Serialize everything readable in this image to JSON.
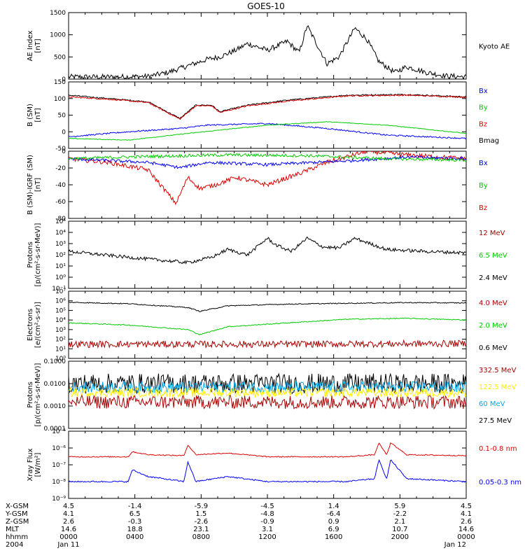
{
  "title": "GOES-10",
  "chart_data": [
    {
      "type": "line",
      "id": "ae",
      "ylabel": "AE Index\n[nT]",
      "ylim": [
        0,
        1500
      ],
      "yscale": "linear",
      "yticks": [
        "0",
        "500",
        "1000",
        "1500"
      ],
      "legend": [
        {
          "name": "Kyoto AE",
          "color": "#000000"
        }
      ],
      "series": [
        {
          "name": "Kyoto AE",
          "color": "#000000",
          "noise": 60,
          "t": [
            0,
            0.1,
            0.2,
            0.25,
            0.3,
            0.35,
            0.38,
            0.42,
            0.45,
            0.5,
            0.55,
            0.58,
            0.6,
            0.65,
            0.68,
            0.72,
            0.75,
            0.78,
            0.82,
            0.85,
            0.9,
            0.95,
            1.0
          ],
          "y": [
            50,
            50,
            60,
            150,
            300,
            450,
            500,
            650,
            800,
            650,
            850,
            600,
            1200,
            350,
            500,
            1150,
            900,
            400,
            150,
            280,
            150,
            70,
            50
          ]
        }
      ]
    },
    {
      "type": "line",
      "id": "bsm",
      "ylabel": "B (SM)\n[nT]",
      "ylim": [
        -50,
        150
      ],
      "yscale": "linear",
      "yticks": [
        "-50",
        "0",
        "50",
        "100",
        "150"
      ],
      "legend": [
        {
          "name": "Bx",
          "color": "#0000ff"
        },
        {
          "name": "By",
          "color": "#00cc00"
        },
        {
          "name": "Bz",
          "color": "#dd0000"
        },
        {
          "name": "Bmag",
          "color": "#000000"
        }
      ],
      "series": [
        {
          "name": "Bmag",
          "color": "#000000",
          "noise": 2,
          "t": [
            0,
            0.1,
            0.2,
            0.28,
            0.32,
            0.36,
            0.38,
            0.45,
            0.55,
            0.7,
            0.85,
            1.0
          ],
          "y": [
            110,
            100,
            90,
            40,
            80,
            80,
            60,
            80,
            95,
            110,
            112,
            105
          ]
        },
        {
          "name": "Bz",
          "color": "#dd0000",
          "noise": 2,
          "t": [
            0,
            0.1,
            0.2,
            0.28,
            0.32,
            0.36,
            0.38,
            0.45,
            0.55,
            0.7,
            0.85,
            1.0
          ],
          "y": [
            105,
            98,
            88,
            38,
            78,
            78,
            58,
            78,
            92,
            108,
            110,
            104
          ]
        },
        {
          "name": "Bx",
          "color": "#0000ff",
          "noise": 2,
          "t": [
            0,
            0.15,
            0.28,
            0.35,
            0.5,
            0.65,
            0.8,
            1.0
          ],
          "y": [
            -15,
            0,
            10,
            20,
            25,
            10,
            -10,
            -20
          ]
        },
        {
          "name": "By",
          "color": "#00cc00",
          "noise": 1,
          "t": [
            0,
            0.15,
            0.3,
            0.5,
            0.65,
            0.8,
            1.0
          ],
          "y": [
            -20,
            -25,
            -5,
            20,
            30,
            20,
            -5
          ]
        }
      ]
    },
    {
      "type": "line",
      "id": "bsmigrf",
      "ylabel": "B (SM)-IGRF (SM)\n[nT]",
      "ylim": [
        -80,
        10
      ],
      "yscale": "linear",
      "yticks": [
        "-80",
        "-60",
        "-40",
        "-20",
        "0"
      ],
      "legend": [
        {
          "name": "Bx",
          "color": "#0000ff"
        },
        {
          "name": "By",
          "color": "#00cc00"
        },
        {
          "name": "Bz",
          "color": "#dd0000"
        }
      ],
      "series": [
        {
          "name": "Bz",
          "color": "#dd0000",
          "noise": 3,
          "t": [
            0,
            0.1,
            0.2,
            0.27,
            0.3,
            0.33,
            0.37,
            0.42,
            0.5,
            0.58,
            0.65,
            0.75,
            0.85,
            1.0
          ],
          "y": [
            0,
            -5,
            -15,
            -60,
            -25,
            -40,
            -35,
            -25,
            -35,
            -20,
            -5,
            10,
            5,
            0
          ]
        },
        {
          "name": "Bx",
          "color": "#0000ff",
          "noise": 2,
          "t": [
            0,
            0.2,
            0.28,
            0.35,
            0.5,
            0.7,
            0.85,
            1.0
          ],
          "y": [
            0,
            -5,
            -12,
            -5,
            -8,
            -3,
            2,
            0
          ]
        },
        {
          "name": "By",
          "color": "#00cc00",
          "noise": 2,
          "t": [
            0,
            0.2,
            0.4,
            0.6,
            0.8,
            1.0
          ],
          "y": [
            0,
            3,
            5,
            4,
            0,
            -2
          ]
        }
      ]
    },
    {
      "type": "line",
      "id": "protons_low",
      "ylabel": "Protons\n[p/(cm²-s-sr-MeV)]",
      "ylim": [
        0.1,
        100000
      ],
      "yscale": "log",
      "yticks": [
        "10⁻¹",
        "10⁰",
        "10¹",
        "10²",
        "10³",
        "10⁴",
        "10⁵"
      ],
      "legend": [
        {
          "name": "12 MeV",
          "color": "#aa0000"
        },
        {
          "name": "6.5 MeV",
          "color": "#00cc00"
        },
        {
          "name": "2.4 MeV",
          "color": "#000000"
        }
      ],
      "series": [
        {
          "name": "2.4 MeV",
          "color": "#000000",
          "noise": 0.15,
          "t": [
            0,
            0.15,
            0.3,
            0.36,
            0.4,
            0.45,
            0.5,
            0.52,
            0.56,
            0.6,
            0.64,
            0.68,
            0.72,
            0.8,
            0.9,
            1.0
          ],
          "y": [
            200,
            60,
            20,
            60,
            300,
            100,
            3000,
            800,
            200,
            3000,
            500,
            400,
            3000,
            300,
            200,
            150
          ]
        }
      ]
    },
    {
      "type": "line",
      "id": "electrons",
      "ylabel": "Electrons\n[e/(cm²-s-sr)]",
      "ylim": [
        1,
        10000000
      ],
      "yscale": "log",
      "yticks": [
        "10⁰",
        "10¹",
        "10²",
        "10³",
        "10⁴",
        "10⁵",
        "10⁶",
        "10⁷"
      ],
      "legend": [
        {
          "name": "4.0 MeV",
          "color": "#aa0000"
        },
        {
          "name": "2.0 MeV",
          "color": "#00cc00"
        },
        {
          "name": "0.6 MeV",
          "color": "#000000"
        }
      ],
      "series": [
        {
          "name": "0.6 MeV",
          "color": "#000000",
          "noise": 0.05,
          "t": [
            0,
            0.15,
            0.3,
            0.33,
            0.4,
            0.55,
            0.7,
            0.85,
            1.0
          ],
          "y": [
            700000,
            500000,
            200000,
            80000,
            300000,
            450000,
            550000,
            650000,
            600000
          ]
        },
        {
          "name": "2.0 MeV",
          "color": "#00cc00",
          "noise": 0.05,
          "t": [
            0,
            0.15,
            0.3,
            0.33,
            0.4,
            0.55,
            0.7,
            0.85,
            1.0
          ],
          "y": [
            5000,
            3000,
            1000,
            300,
            2000,
            5000,
            12000,
            15000,
            10000
          ]
        },
        {
          "name": "4.0 MeV",
          "color": "#aa0000",
          "noise": 0.35,
          "t": [
            0,
            0.5,
            1.0
          ],
          "y": [
            30,
            30,
            35
          ]
        }
      ]
    },
    {
      "type": "line",
      "id": "protons_high",
      "ylabel": "Protons\n[p/(cm²-s-sr-MeV)]",
      "ylim": [
        0.0001,
        0.1
      ],
      "yscale": "log",
      "yticks": [
        "0.0001",
        "0.0010",
        "0.0100",
        "0.1000"
      ],
      "legend": [
        {
          "name": "332.5 MeV",
          "color": "#aa0000"
        },
        {
          "name": "122.5 MeV",
          "color": "#ffee00"
        },
        {
          "name": "60 MeV",
          "color": "#00aaee"
        },
        {
          "name": "27.5 MeV",
          "color": "#000000"
        }
      ],
      "series": [
        {
          "name": "27.5 MeV",
          "color": "#000000",
          "noise": 0.45,
          "t": [
            0,
            1.0
          ],
          "y": [
            0.01,
            0.01
          ]
        },
        {
          "name": "60 MeV",
          "color": "#00aaee",
          "noise": 0.25,
          "t": [
            0,
            1.0
          ],
          "y": [
            0.007,
            0.007
          ]
        },
        {
          "name": "122.5 MeV",
          "color": "#ffee00",
          "noise": 0.2,
          "t": [
            0,
            1.0
          ],
          "y": [
            0.004,
            0.004
          ]
        },
        {
          "name": "332.5 MeV",
          "color": "#aa0000",
          "noise": 0.3,
          "t": [
            0,
            1.0
          ],
          "y": [
            0.0015,
            0.0015
          ]
        }
      ]
    },
    {
      "type": "line",
      "id": "xray",
      "ylabel": "Xray Flux\n[W/m²]",
      "ylim": [
        1e-09,
        1e-05
      ],
      "yscale": "log",
      "yticks": [
        "10⁻⁹",
        "10⁻⁸",
        "10⁻⁷",
        "10⁻⁶",
        "10⁻⁵"
      ],
      "legend": [
        {
          "name": "0.1-0.8 nm",
          "color": "#dd0000"
        },
        {
          "name": "0.05-0.3 nm",
          "color": "#0000ff"
        }
      ],
      "series": [
        {
          "name": "0.1-0.8 nm",
          "color": "#dd0000",
          "noise": 0.03,
          "t": [
            0,
            0.15,
            0.16,
            0.2,
            0.29,
            0.3,
            0.32,
            0.4,
            0.5,
            0.7,
            0.77,
            0.78,
            0.8,
            0.81,
            0.85,
            1.0
          ],
          "y": [
            3e-07,
            3e-07,
            6e-07,
            4e-07,
            3.5e-07,
            1.5e-06,
            4e-07,
            5e-07,
            3e-07,
            3e-07,
            4e-07,
            2e-06,
            4e-07,
            2e-06,
            4e-07,
            3.5e-07
          ]
        },
        {
          "name": "0.05-0.3 nm",
          "color": "#0000ff",
          "noise": 0.04,
          "t": [
            0,
            0.15,
            0.16,
            0.2,
            0.29,
            0.3,
            0.32,
            0.4,
            0.5,
            0.7,
            0.77,
            0.78,
            0.8,
            0.81,
            0.85,
            1.0
          ],
          "y": [
            1e-08,
            1e-08,
            5e-08,
            2e-08,
            1e-08,
            1.5e-07,
            1e-08,
            2e-08,
            1e-08,
            1e-08,
            1.5e-08,
            2e-07,
            1.5e-08,
            2e-07,
            1.5e-08,
            1e-08
          ]
        }
      ]
    }
  ],
  "footer": {
    "row_labels": [
      "X-GSM",
      "Y-GSM",
      "Z-GSM",
      "MLT",
      "hhmm",
      "2004"
    ],
    "columns": [
      [
        "4.5",
        "4.1",
        "2.6",
        "14.6",
        "0000",
        "Jan 11"
      ],
      [
        "-1.4",
        "6.5",
        "-0.3",
        "18.8",
        "0400",
        ""
      ],
      [
        "-5.9",
        "1.5",
        "-2.6",
        "23.1",
        "0800",
        ""
      ],
      [
        "-4.5",
        "-4.8",
        "-0.9",
        "3.1",
        "1200",
        ""
      ],
      [
        "1.4",
        "-6.4",
        "0.9",
        "6.9",
        "1600",
        ""
      ],
      [
        "5.9",
        "-2.2",
        "2.1",
        "10.7",
        "2000",
        ""
      ],
      [
        "4.5",
        "4.1",
        "2.6",
        "14.6",
        "0000",
        "Jan 12"
      ]
    ]
  }
}
